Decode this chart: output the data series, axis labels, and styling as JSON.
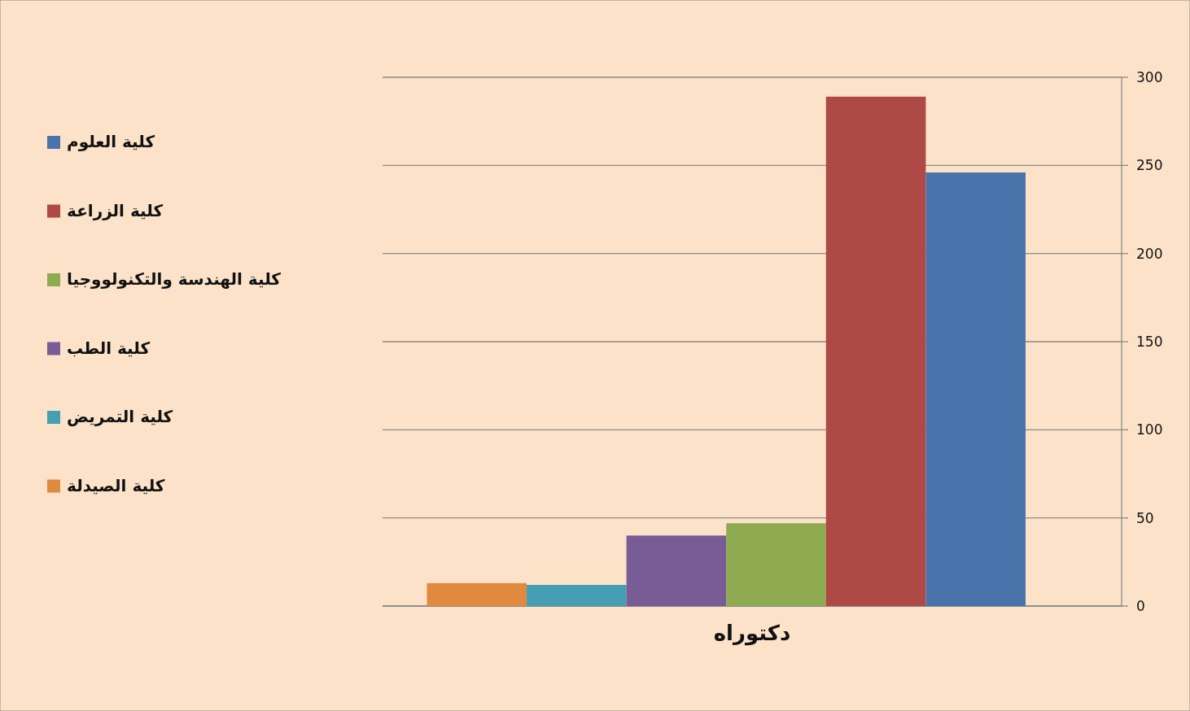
{
  "chart_data": {
    "type": "bar",
    "categories": [
      "دكتوراه"
    ],
    "series": [
      {
        "name": "كلية الصيدلة",
        "color": "#e08a40",
        "values": [
          13
        ]
      },
      {
        "name": "كلية التمريض",
        "color": "#469eb4",
        "values": [
          12
        ]
      },
      {
        "name": "كلية الطب",
        "color": "#775c95",
        "values": [
          40
        ]
      },
      {
        "name": "كلية الهندسة والتكنولووجيا",
        "color": "#8eab52",
        "values": [
          47
        ]
      },
      {
        "name": "كلية الزراعة",
        "color": "#ae4945",
        "values": [
          289
        ]
      },
      {
        "name": "كلية العلوم",
        "color": "#4874ab",
        "values": [
          246
        ]
      }
    ],
    "ylim": [
      0,
      300
    ],
    "yticks": [
      0,
      50,
      100,
      150,
      200,
      250,
      300
    ],
    "grid": "y",
    "legend": "left"
  }
}
